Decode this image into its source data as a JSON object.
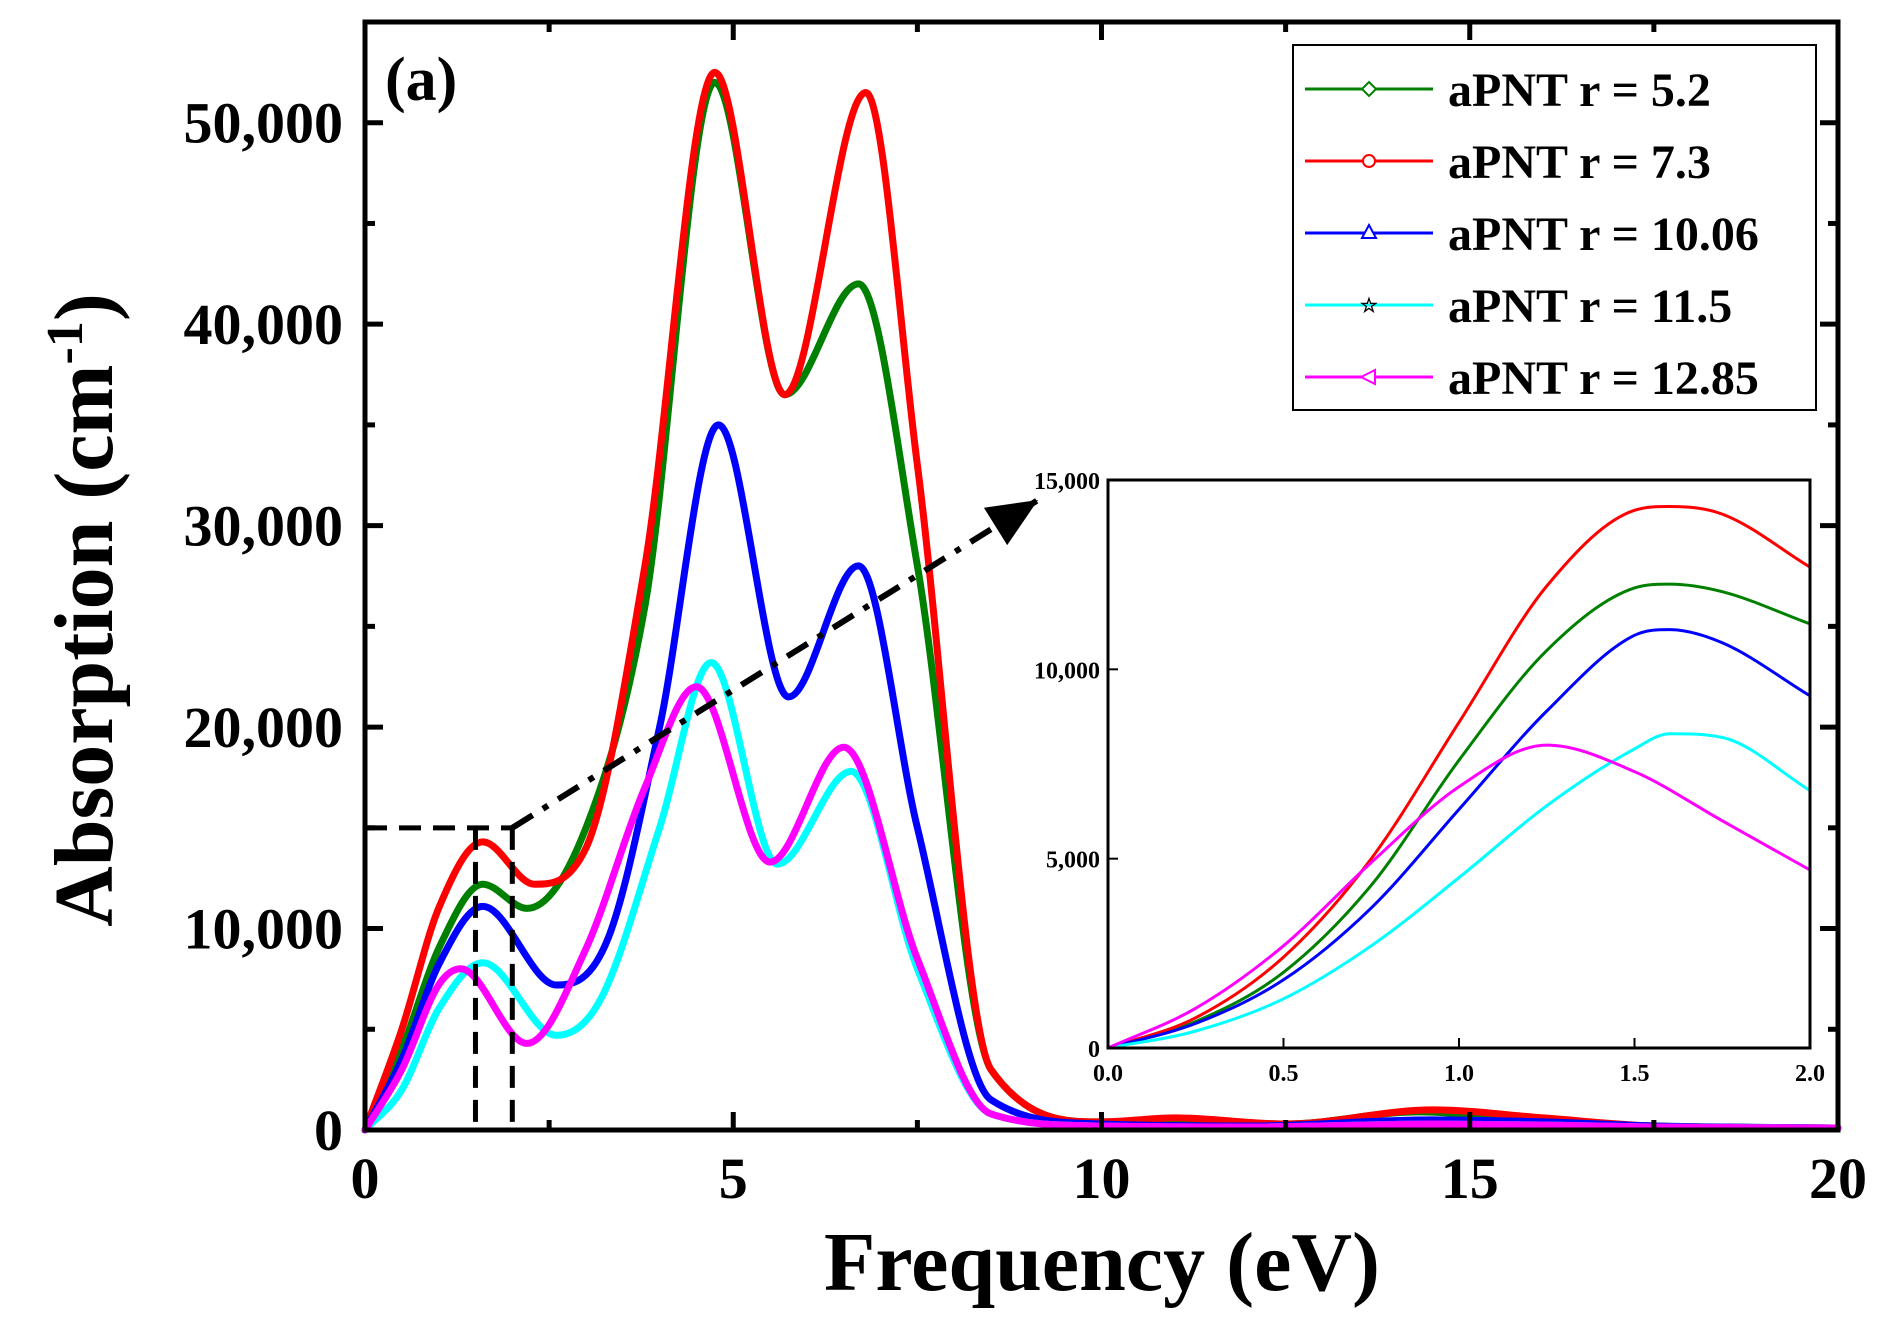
{
  "chart_data": [
    {
      "type": "line",
      "panel_label": "(a)",
      "xlabel": "Frequency (eV)",
      "ylabel": "Absorption (cm",
      "ylabel_sup": "-1",
      "ylabel_close": ")",
      "xlim": [
        0,
        20
      ],
      "ylim": [
        0,
        55000
      ],
      "xticks": [
        0,
        5,
        10,
        15,
        20
      ],
      "xtick_labels": [
        "0",
        "5",
        "10",
        "15",
        "20"
      ],
      "yticks": [
        0,
        10000,
        20000,
        30000,
        40000,
        50000
      ],
      "ytick_labels": [
        "0",
        "10,000",
        "20,000",
        "30,000",
        "40,000",
        "50,000"
      ],
      "legend_position": "top-right",
      "series": [
        {
          "name": "aPNT r = 5.2",
          "color": "#008000",
          "marker": "diamond",
          "x": [
            0,
            0.5,
            1.0,
            1.6,
            2.2,
            3.0,
            3.8,
            4.75,
            5.7,
            6.7,
            7.5,
            8.5,
            10,
            11,
            12.5,
            14.3,
            16,
            17.5,
            20
          ],
          "y": [
            0,
            4000,
            9000,
            12200,
            11000,
            15000,
            26000,
            52000,
            36500,
            42000,
            28000,
            3000,
            400,
            500,
            300,
            900,
            400,
            200,
            100
          ]
        },
        {
          "name": "aPNT r = 7.3",
          "color": "#ff0000",
          "marker": "circle",
          "x": [
            0,
            0.5,
            1.0,
            1.6,
            2.3,
            3.0,
            3.8,
            4.75,
            5.7,
            6.8,
            7.5,
            8.5,
            10,
            11,
            12.5,
            14.5,
            16,
            17.5,
            20
          ],
          "y": [
            0,
            5000,
            11000,
            14300,
            12200,
            14000,
            28000,
            52500,
            36500,
            51500,
            33000,
            3000,
            400,
            600,
            300,
            1000,
            600,
            200,
            100
          ]
        },
        {
          "name": "aPNT r = 10.06",
          "color": "#0000ff",
          "marker": "triangle",
          "x": [
            0,
            0.5,
            1.0,
            1.6,
            2.6,
            3.3,
            4.0,
            4.8,
            5.75,
            6.7,
            7.5,
            8.5,
            10,
            12,
            14.5,
            16,
            17.5,
            20
          ],
          "y": [
            0,
            3500,
            8200,
            11100,
            7200,
            9500,
            20000,
            35000,
            21500,
            28000,
            15000,
            1500,
            300,
            200,
            500,
            400,
            200,
            100
          ]
        },
        {
          "name": "aPNT r = 11.5",
          "color": "#00ffff",
          "marker": "star",
          "x": [
            0,
            0.5,
            1.0,
            1.6,
            2.6,
            3.2,
            4.0,
            4.7,
            5.6,
            6.6,
            7.5,
            8.5,
            10,
            12,
            14.5,
            16,
            17.5,
            20
          ],
          "y": [
            0,
            2000,
            6000,
            8300,
            4700,
            6500,
            15000,
            23200,
            13200,
            17800,
            8000,
            800,
            200,
            150,
            300,
            250,
            150,
            100
          ]
        },
        {
          "name": "aPNT r = 12.85",
          "color": "#ff00ff",
          "marker": "triangle-left",
          "x": [
            0,
            0.5,
            1.0,
            1.3,
            2.2,
            3.0,
            3.8,
            4.5,
            5.5,
            6.5,
            7.5,
            8.5,
            10,
            12,
            14.5,
            16,
            17.5,
            20
          ],
          "y": [
            0,
            3000,
            7200,
            8000,
            4300,
            9000,
            17000,
            22000,
            13300,
            19000,
            8500,
            800,
            200,
            150,
            300,
            250,
            150,
            100
          ]
        }
      ]
    },
    {
      "type": "line",
      "role": "inset",
      "xlim": [
        0,
        2.0
      ],
      "ylim": [
        0,
        15000
      ],
      "xticks": [
        0,
        0.5,
        1.0,
        1.5,
        2.0
      ],
      "xtick_labels": [
        "0.0",
        "0.5",
        "1.0",
        "1.5",
        "2.0"
      ],
      "yticks": [
        0,
        5000,
        10000,
        15000
      ],
      "ytick_labels": [
        "0",
        "5,000",
        "10,000",
        "15,000"
      ],
      "series": [
        {
          "name": "aPNT r = 5.2",
          "color": "#008000",
          "x": [
            0,
            0.25,
            0.5,
            0.75,
            1.0,
            1.25,
            1.5,
            1.6,
            1.75,
            2.0
          ],
          "y": [
            0,
            700,
            2000,
            4300,
            7600,
            10500,
            12150,
            12250,
            12050,
            11200
          ]
        },
        {
          "name": "aPNT r = 7.3",
          "color": "#ff0000",
          "x": [
            0,
            0.25,
            0.5,
            0.75,
            1.0,
            1.25,
            1.5,
            1.6,
            1.75,
            2.0
          ],
          "y": [
            0,
            800,
            2400,
            5000,
            8600,
            12200,
            14200,
            14300,
            14100,
            12700
          ]
        },
        {
          "name": "aPNT r = 10.06",
          "color": "#0000ff",
          "x": [
            0,
            0.25,
            0.5,
            0.75,
            1.0,
            1.25,
            1.5,
            1.6,
            1.75,
            2.0
          ],
          "y": [
            0,
            650,
            1800,
            3700,
            6300,
            8900,
            10900,
            11050,
            10700,
            9300
          ]
        },
        {
          "name": "aPNT r = 11.5",
          "color": "#00ffff",
          "x": [
            0,
            0.25,
            0.5,
            0.75,
            1.0,
            1.25,
            1.5,
            1.6,
            1.75,
            2.0
          ],
          "y": [
            0,
            450,
            1300,
            2700,
            4500,
            6400,
            7900,
            8300,
            8200,
            6800
          ]
        },
        {
          "name": "aPNT r = 12.85",
          "color": "#ff00ff",
          "x": [
            0,
            0.25,
            0.5,
            0.75,
            1.0,
            1.25,
            1.5,
            1.75,
            2.0
          ],
          "y": [
            0,
            1050,
            2700,
            4900,
            6900,
            8000,
            7300,
            6000,
            4700
          ]
        }
      ]
    }
  ]
}
